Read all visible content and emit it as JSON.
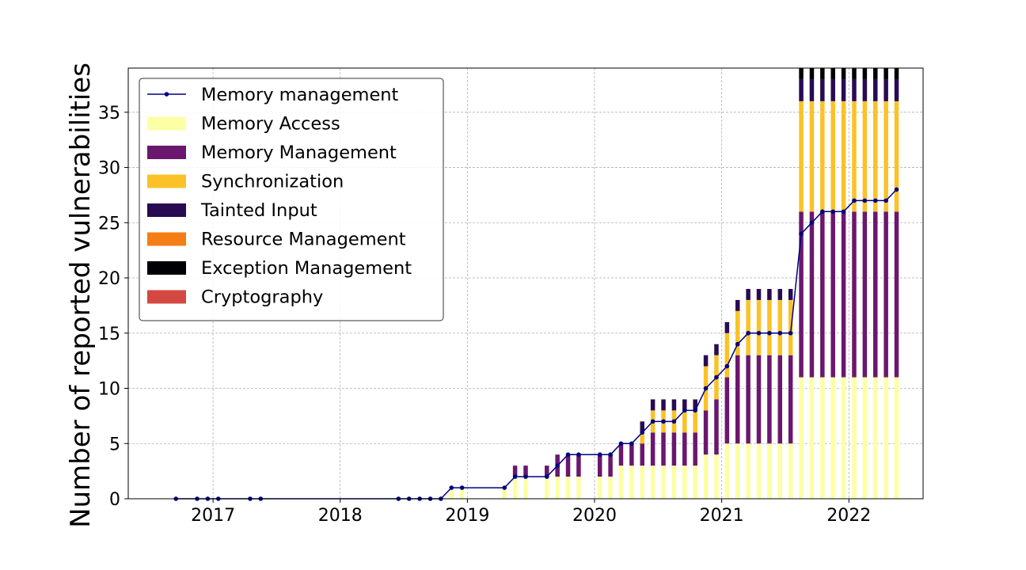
{
  "chart_data": {
    "type": "bar",
    "title": "",
    "xlabel": "",
    "ylabel": "Number of reported vulnerabilities",
    "ylim": [
      0,
      39
    ],
    "xlim": [
      "2016-05-01",
      "2022-08-01"
    ],
    "x_ticks": [
      "2017",
      "2018",
      "2019",
      "2020",
      "2021",
      "2022"
    ],
    "y_ticks": [
      0,
      5,
      10,
      15,
      20,
      25,
      30,
      35
    ],
    "grid": true,
    "legend_position": "top-left",
    "line_series": {
      "name": "Memory management",
      "color": "#00007f",
      "points": [
        {
          "x": "2016-09",
          "y": 0
        },
        {
          "x": "2016-11",
          "y": 0
        },
        {
          "x": "2016-12",
          "y": 0
        },
        {
          "x": "2017-01",
          "y": 0
        },
        {
          "x": "2017-04",
          "y": 0
        },
        {
          "x": "2017-05",
          "y": 0
        },
        {
          "x": "2018-06",
          "y": 0
        },
        {
          "x": "2018-07",
          "y": 0
        },
        {
          "x": "2018-08",
          "y": 0
        },
        {
          "x": "2018-09",
          "y": 0
        },
        {
          "x": "2018-10",
          "y": 0
        },
        {
          "x": "2018-11",
          "y": 1
        },
        {
          "x": "2018-12",
          "y": 1
        },
        {
          "x": "2019-04",
          "y": 1
        },
        {
          "x": "2019-05",
          "y": 2
        },
        {
          "x": "2019-06",
          "y": 2
        },
        {
          "x": "2019-08",
          "y": 2
        },
        {
          "x": "2019-09",
          "y": 3
        },
        {
          "x": "2019-10",
          "y": 4
        },
        {
          "x": "2019-11",
          "y": 4
        },
        {
          "x": "2020-01",
          "y": 4
        },
        {
          "x": "2020-02",
          "y": 4
        },
        {
          "x": "2020-03",
          "y": 5
        },
        {
          "x": "2020-04",
          "y": 5
        },
        {
          "x": "2020-05",
          "y": 6
        },
        {
          "x": "2020-06",
          "y": 7
        },
        {
          "x": "2020-07",
          "y": 7
        },
        {
          "x": "2020-08",
          "y": 7
        },
        {
          "x": "2020-09",
          "y": 8
        },
        {
          "x": "2020-10",
          "y": 8
        },
        {
          "x": "2020-11",
          "y": 10
        },
        {
          "x": "2020-12",
          "y": 11
        },
        {
          "x": "2021-01",
          "y": 12
        },
        {
          "x": "2021-02",
          "y": 14
        },
        {
          "x": "2021-03",
          "y": 15
        },
        {
          "x": "2021-04",
          "y": 15
        },
        {
          "x": "2021-05",
          "y": 15
        },
        {
          "x": "2021-06",
          "y": 15
        },
        {
          "x": "2021-07",
          "y": 15
        },
        {
          "x": "2021-08",
          "y": 24
        },
        {
          "x": "2021-09",
          "y": 25
        },
        {
          "x": "2021-10",
          "y": 26
        },
        {
          "x": "2021-11",
          "y": 26
        },
        {
          "x": "2021-12",
          "y": 26
        },
        {
          "x": "2022-01",
          "y": 27
        },
        {
          "x": "2022-02",
          "y": 27
        },
        {
          "x": "2022-03",
          "y": 27
        },
        {
          "x": "2022-04",
          "y": 27
        },
        {
          "x": "2022-05",
          "y": 28
        }
      ]
    },
    "bar_series": [
      {
        "name": "Memory Access",
        "color": "#fcffa4"
      },
      {
        "name": "Memory Management",
        "color": "#6a176e"
      },
      {
        "name": "Synchronization",
        "color": "#fac228"
      },
      {
        "name": "Tainted Input",
        "color": "#280b53"
      },
      {
        "name": "Resource Management",
        "color": "#f57d15"
      },
      {
        "name": "Exception Management",
        "color": "#000004"
      },
      {
        "name": "Cryptography",
        "color": "#d44842"
      }
    ],
    "bars": [
      {
        "x": "2018-11",
        "values": [
          1,
          0,
          0,
          0,
          0,
          0,
          0
        ]
      },
      {
        "x": "2018-12",
        "values": [
          1,
          0,
          0,
          0,
          0,
          0,
          0
        ]
      },
      {
        "x": "2019-04",
        "values": [
          1,
          0,
          0,
          0,
          0,
          0,
          0
        ]
      },
      {
        "x": "2019-05",
        "values": [
          2,
          1,
          0,
          0,
          0,
          0,
          0
        ]
      },
      {
        "x": "2019-06",
        "values": [
          2,
          1,
          0,
          0,
          0,
          0,
          0
        ]
      },
      {
        "x": "2019-08",
        "values": [
          2,
          1,
          0,
          0,
          0,
          0,
          0
        ]
      },
      {
        "x": "2019-09",
        "values": [
          2,
          2,
          0,
          0,
          0,
          0,
          0
        ]
      },
      {
        "x": "2019-10",
        "values": [
          2,
          2,
          0,
          0,
          0,
          0,
          0
        ]
      },
      {
        "x": "2019-11",
        "values": [
          2,
          2,
          0,
          0,
          0,
          0,
          0
        ]
      },
      {
        "x": "2020-01",
        "values": [
          2,
          2,
          0,
          0,
          0,
          0,
          0
        ]
      },
      {
        "x": "2020-02",
        "values": [
          2,
          2,
          0,
          0,
          0,
          0,
          0
        ]
      },
      {
        "x": "2020-03",
        "values": [
          3,
          2,
          0,
          0,
          0,
          0,
          0
        ]
      },
      {
        "x": "2020-04",
        "values": [
          3,
          2,
          0,
          0,
          0,
          0,
          0
        ]
      },
      {
        "x": "2020-05",
        "values": [
          3,
          2,
          1,
          1,
          0,
          0,
          0
        ]
      },
      {
        "x": "2020-06",
        "values": [
          3,
          3,
          2,
          1,
          0,
          0,
          0
        ]
      },
      {
        "x": "2020-07",
        "values": [
          3,
          3,
          2,
          1,
          0,
          0,
          0
        ]
      },
      {
        "x": "2020-08",
        "values": [
          3,
          3,
          2,
          1,
          0,
          0,
          0
        ]
      },
      {
        "x": "2020-09",
        "values": [
          3,
          3,
          2,
          1,
          0,
          0,
          0
        ]
      },
      {
        "x": "2020-10",
        "values": [
          3,
          3,
          2,
          1,
          0,
          0,
          0
        ]
      },
      {
        "x": "2020-11",
        "values": [
          4,
          4,
          4,
          1,
          0,
          0,
          0
        ]
      },
      {
        "x": "2020-12",
        "values": [
          4,
          5,
          4,
          1,
          0,
          0,
          0
        ]
      },
      {
        "x": "2021-01",
        "values": [
          5,
          6,
          4,
          1,
          0,
          0,
          0
        ]
      },
      {
        "x": "2021-02",
        "values": [
          5,
          8,
          4,
          1,
          0,
          0,
          0
        ]
      },
      {
        "x": "2021-03",
        "values": [
          5,
          8,
          5,
          1,
          0,
          0,
          0
        ]
      },
      {
        "x": "2021-04",
        "values": [
          5,
          8,
          5,
          1,
          0,
          0,
          0
        ]
      },
      {
        "x": "2021-05",
        "values": [
          5,
          8,
          5,
          1,
          0,
          0,
          0
        ]
      },
      {
        "x": "2021-06",
        "values": [
          5,
          8,
          5,
          1,
          0,
          0,
          0
        ]
      },
      {
        "x": "2021-07",
        "values": [
          5,
          8,
          5,
          1,
          0,
          0,
          0
        ]
      },
      {
        "x": "2021-08",
        "values": [
          11,
          15,
          10,
          2,
          0,
          1,
          0
        ]
      },
      {
        "x": "2021-09",
        "values": [
          11,
          15,
          10,
          2,
          0,
          1,
          0
        ]
      },
      {
        "x": "2021-10",
        "values": [
          11,
          15,
          10,
          2,
          0,
          1,
          0
        ]
      },
      {
        "x": "2021-11",
        "values": [
          11,
          15,
          10,
          2,
          0,
          1,
          0
        ]
      },
      {
        "x": "2021-12",
        "values": [
          11,
          15,
          10,
          2,
          0,
          1,
          0
        ]
      },
      {
        "x": "2022-01",
        "values": [
          11,
          15,
          10,
          2,
          0,
          1,
          0
        ]
      },
      {
        "x": "2022-02",
        "values": [
          11,
          15,
          10,
          2,
          0,
          1,
          0
        ]
      },
      {
        "x": "2022-03",
        "values": [
          11,
          15,
          10,
          2,
          0,
          1,
          0
        ]
      },
      {
        "x": "2022-04",
        "values": [
          11,
          15,
          10,
          2,
          0,
          1,
          0
        ]
      },
      {
        "x": "2022-05",
        "values": [
          11,
          15,
          10,
          2,
          0,
          1,
          0
        ]
      }
    ]
  }
}
